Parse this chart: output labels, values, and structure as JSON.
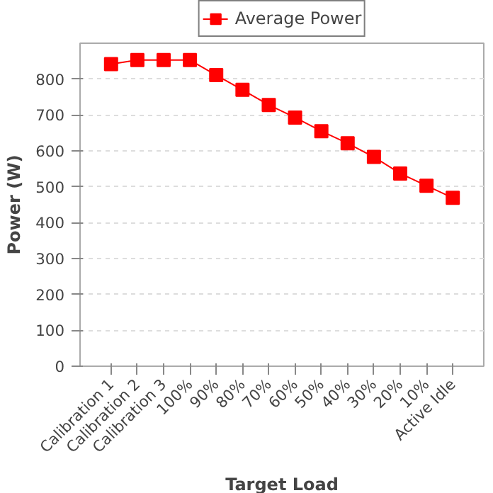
{
  "chart_data": {
    "type": "line",
    "xlabel": "Target Load",
    "ylabel": "Power (W)",
    "categories": [
      "Calibration 1",
      "Calibration 2",
      "Calibration 3",
      "100%",
      "90%",
      "80%",
      "70%",
      "60%",
      "50%",
      "40%",
      "30%",
      "20%",
      "10%",
      "Active Idle"
    ],
    "series": [
      {
        "name": "Average Power",
        "color": "#ff0000",
        "values": [
          842,
          853,
          853,
          853,
          811,
          770,
          728,
          693,
          655,
          621,
          583,
          537,
          503,
          469
        ]
      }
    ],
    "ylim": [
      0,
      900
    ],
    "yticks": [
      0,
      100,
      200,
      300,
      400,
      500,
      600,
      700,
      800
    ],
    "grid": "y",
    "legend": "top",
    "marker": "square",
    "line_style": "solid"
  }
}
